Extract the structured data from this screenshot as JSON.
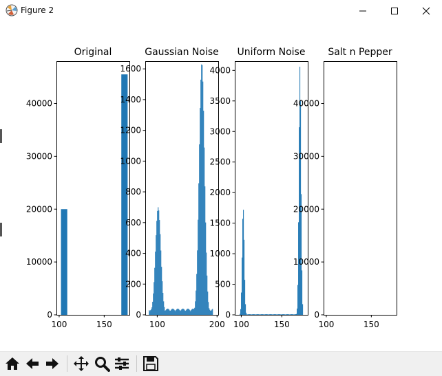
{
  "window": {
    "title": "Figure 2"
  },
  "toolbar": {
    "buttons": [
      "home-icon",
      "back-icon",
      "forward-icon",
      "pan-icon",
      "zoom-icon",
      "configure-icon",
      "save-icon"
    ]
  },
  "chart_data": [
    {
      "type": "bar",
      "title": "Original",
      "xlim": [
        97,
        178
      ],
      "ylim": [
        0,
        48000
      ],
      "xticks": [
        100,
        150
      ],
      "yticks": [
        0,
        10000,
        20000,
        30000,
        40000
      ],
      "bars": [
        {
          "x0": 102,
          "x1": 109,
          "value": 20000
        },
        {
          "x0": 169,
          "x1": 176,
          "value": 45500
        }
      ],
      "color": "#1f77b4"
    },
    {
      "type": "bar",
      "title": "Gaussian Noise",
      "xlim": [
        80,
        202
      ],
      "ylim": [
        0,
        1650
      ],
      "xticks": [
        100,
        200
      ],
      "yticks": [
        0,
        200,
        400,
        600,
        800,
        1000,
        1200,
        1400,
        1600
      ],
      "peaks": [
        {
          "center": 101,
          "sigma": 4.5,
          "height": 700,
          "min": 86,
          "max": 115
        },
        {
          "center": 174,
          "sigma": 4.5,
          "height": 1640,
          "min": 156,
          "max": 192
        }
      ],
      "baseline": 40,
      "color": "#1f77b4"
    },
    {
      "type": "bar",
      "title": "Uniform Noise",
      "xlim": [
        92,
        182
      ],
      "ylim": [
        0,
        4150
      ],
      "xticks": [
        100,
        150
      ],
      "yticks": [
        0,
        500,
        1000,
        1500,
        2000,
        2500,
        3000,
        3500,
        4000
      ],
      "peaks": [
        {
          "center": 102,
          "sigma": 1.3,
          "height": 1750,
          "min": 96,
          "max": 108
        },
        {
          "center": 172,
          "sigma": 1.3,
          "height": 4080,
          "min": 166,
          "max": 178
        }
      ],
      "baseline": 10,
      "color": "#1f77b4"
    },
    {
      "type": "bar",
      "title": "Salt n Pepper",
      "xlim": [
        97,
        178
      ],
      "ylim": [
        0,
        48000
      ],
      "xticks": [
        100,
        150
      ],
      "yticks": [
        0,
        10000,
        20000,
        30000,
        40000
      ],
      "bars": [],
      "color": "#1f77b4"
    }
  ]
}
